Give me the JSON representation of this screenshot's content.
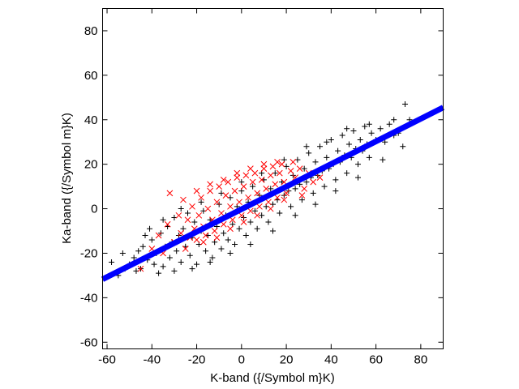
{
  "chart_data": {
    "type": "scatter",
    "title": "",
    "xlabel": "K-band ({/Symbol m}K)",
    "ylabel": "Ka-band ({/Symbol m}K)",
    "xlim": [
      -62,
      90
    ],
    "ylim": [
      -63,
      90
    ],
    "xticks": [
      -60,
      -40,
      -20,
      0,
      20,
      40,
      60,
      80
    ],
    "yticks": [
      -60,
      -40,
      -20,
      0,
      20,
      40,
      60,
      80
    ],
    "xtick_labels": [
      "-60",
      "-40",
      "-20",
      "0",
      "20",
      "40",
      "60",
      "80"
    ],
    "ytick_labels": [
      "-60",
      "-40",
      "-20",
      "0",
      "20",
      "40",
      "60",
      "80"
    ],
    "grid": false,
    "series": [
      {
        "marker": "plus",
        "color": "#000000",
        "points": [
          [
            -55,
            -30
          ],
          [
            -52,
            -27
          ],
          [
            -50,
            -25
          ],
          [
            -48,
            -22
          ],
          [
            -46,
            -19
          ],
          [
            -45,
            -27
          ],
          [
            -44,
            -17
          ],
          [
            -42,
            -23
          ],
          [
            -40,
            -14
          ],
          [
            -39,
            -25
          ],
          [
            -38,
            -20
          ],
          [
            -36,
            -11
          ],
          [
            -35,
            -26
          ],
          [
            -34,
            -17
          ],
          [
            -33,
            -8
          ],
          [
            -32,
            -22
          ],
          [
            -31,
            -15
          ],
          [
            -30,
            -4
          ],
          [
            -29,
            -19
          ],
          [
            -28,
            -12
          ],
          [
            -27,
            -24
          ],
          [
            -26,
            -9
          ],
          [
            -25,
            -17
          ],
          [
            -24,
            -2
          ],
          [
            -23,
            -21
          ],
          [
            -22,
            -13
          ],
          [
            -21,
            -6
          ],
          [
            -20,
            -25
          ],
          [
            -19,
            -16
          ],
          [
            -18,
            -10
          ],
          [
            -17,
            -1
          ],
          [
            -16,
            -19
          ],
          [
            -15,
            -12
          ],
          [
            -14,
            -5
          ],
          [
            -13,
            -22
          ],
          [
            -12,
            -15
          ],
          [
            -11,
            -8
          ],
          [
            -10,
            2
          ],
          [
            -9,
            -18
          ],
          [
            -8,
            -11
          ],
          [
            -7,
            -3
          ],
          [
            -6,
            -14
          ],
          [
            -5,
            5
          ],
          [
            -4,
            -7
          ],
          [
            -3,
            -16
          ],
          [
            -2,
            1
          ],
          [
            -1,
            -9
          ],
          [
            0,
            8
          ],
          [
            1,
            -4
          ],
          [
            2,
            -12
          ],
          [
            3,
            3
          ],
          [
            4,
            -6
          ],
          [
            5,
            10
          ],
          [
            6,
            -1
          ],
          [
            7,
            -9
          ],
          [
            8,
            6
          ],
          [
            9,
            -3
          ],
          [
            10,
            13
          ],
          [
            11,
            1
          ],
          [
            12,
            -6
          ],
          [
            13,
            9
          ],
          [
            14,
            2
          ],
          [
            15,
            16
          ],
          [
            16,
            4
          ],
          [
            17,
            -2
          ],
          [
            18,
            12
          ],
          [
            19,
            6
          ],
          [
            20,
            19
          ],
          [
            21,
            8
          ],
          [
            22,
            1
          ],
          [
            23,
            15
          ],
          [
            24,
            9
          ],
          [
            25,
            22
          ],
          [
            26,
            11
          ],
          [
            27,
            4
          ],
          [
            28,
            18
          ],
          [
            29,
            12
          ],
          [
            30,
            25
          ],
          [
            31,
            14
          ],
          [
            32,
            7
          ],
          [
            33,
            21
          ],
          [
            34,
            15
          ],
          [
            35,
            28
          ],
          [
            36,
            17
          ],
          [
            37,
            10
          ],
          [
            38,
            23
          ],
          [
            39,
            18
          ],
          [
            40,
            31
          ],
          [
            41,
            20
          ],
          [
            42,
            13
          ],
          [
            43,
            26
          ],
          [
            44,
            21
          ],
          [
            45,
            33
          ],
          [
            46,
            24
          ],
          [
            47,
            16
          ],
          [
            48,
            29
          ],
          [
            49,
            23
          ],
          [
            50,
            35
          ],
          [
            51,
            27
          ],
          [
            52,
            20
          ],
          [
            53,
            31
          ],
          [
            54,
            26
          ],
          [
            55,
            37
          ],
          [
            56,
            29
          ],
          [
            57,
            23
          ],
          [
            58,
            34
          ],
          [
            60,
            31
          ],
          [
            62,
            36
          ],
          [
            64,
            30
          ],
          [
            66,
            38
          ],
          [
            68,
            33
          ],
          [
            70,
            34
          ],
          [
            73,
            47
          ],
          [
            75,
            40
          ],
          [
            -58,
            -24
          ],
          [
            -53,
            -20
          ],
          [
            -47,
            -28
          ],
          [
            -43,
            -12
          ],
          [
            -37,
            -29
          ],
          [
            -41,
            -9
          ],
          [
            -35,
            -5
          ],
          [
            -30,
            -28
          ],
          [
            -27,
            0
          ],
          [
            -22,
            -27
          ],
          [
            -18,
            3
          ],
          [
            -14,
            -24
          ],
          [
            -9,
            7
          ],
          [
            -5,
            -20
          ],
          [
            0,
            12
          ],
          [
            4,
            -16
          ],
          [
            9,
            16
          ],
          [
            14,
            -10
          ],
          [
            19,
            22
          ],
          [
            24,
            -3
          ],
          [
            29,
            28
          ],
          [
            33,
            2
          ],
          [
            38,
            30
          ],
          [
            42,
            8
          ],
          [
            47,
            36
          ],
          [
            52,
            14
          ],
          [
            57,
            38
          ],
          [
            63,
            22
          ],
          [
            68,
            40
          ],
          [
            72,
            28
          ]
        ]
      },
      {
        "marker": "cross",
        "color": "#ff0000",
        "points": [
          [
            -32,
            7
          ],
          [
            -45,
            -27
          ],
          [
            -40,
            -18
          ],
          [
            -37,
            -12
          ],
          [
            -35,
            -20
          ],
          [
            -33,
            -7
          ],
          [
            -30,
            -15
          ],
          [
            -28,
            -3
          ],
          [
            -27,
            -11
          ],
          [
            -25,
            -18
          ],
          [
            -24,
            -5
          ],
          [
            -22,
            1
          ],
          [
            -21,
            -9
          ],
          [
            -20,
            -14
          ],
          [
            -19,
            -3
          ],
          [
            -18,
            5
          ],
          [
            -17,
            -8
          ],
          [
            -16,
            -12
          ],
          [
            -15,
            0
          ],
          [
            -14,
            8
          ],
          [
            -13,
            -5
          ],
          [
            -12,
            -10
          ],
          [
            -11,
            3
          ],
          [
            -10,
            10
          ],
          [
            -9,
            -2
          ],
          [
            -8,
            -7
          ],
          [
            -7,
            6
          ],
          [
            -6,
            12
          ],
          [
            -5,
            1
          ],
          [
            -4,
            -5
          ],
          [
            -3,
            8
          ],
          [
            -2,
            14
          ],
          [
            -1,
            3
          ],
          [
            0,
            -3
          ],
          [
            1,
            10
          ],
          [
            2,
            15
          ],
          [
            3,
            5
          ],
          [
            4,
            -1
          ],
          [
            5,
            12
          ],
          [
            6,
            16
          ],
          [
            7,
            7
          ],
          [
            8,
            1
          ],
          [
            9,
            13
          ],
          [
            10,
            18
          ],
          [
            11,
            9
          ],
          [
            12,
            3
          ],
          [
            13,
            15
          ],
          [
            14,
            19
          ],
          [
            15,
            11
          ],
          [
            16,
            5
          ],
          [
            17,
            16
          ],
          [
            18,
            20
          ],
          [
            19,
            12
          ],
          [
            20,
            7
          ],
          [
            22,
            17
          ],
          [
            24,
            14
          ],
          [
            26,
            18
          ],
          [
            28,
            9
          ],
          [
            30,
            16
          ],
          [
            32,
            12
          ],
          [
            35,
            14
          ],
          [
            -26,
            4
          ],
          [
            -23,
            -13
          ],
          [
            -20,
            8
          ],
          [
            -17,
            -15
          ],
          [
            -14,
            11
          ],
          [
            -11,
            -13
          ],
          [
            -8,
            13
          ],
          [
            -5,
            -9
          ],
          [
            -2,
            16
          ],
          [
            1,
            -6
          ],
          [
            4,
            18
          ],
          [
            7,
            -3
          ],
          [
            10,
            20
          ],
          [
            13,
            0
          ],
          [
            16,
            21
          ],
          [
            19,
            4
          ],
          [
            23,
            21
          ],
          [
            27,
            6
          ]
        ]
      }
    ],
    "fit_line": {
      "color": "#0000ff",
      "x": [
        -62,
        90
      ],
      "y": [
        -31.7,
        45.5
      ]
    }
  }
}
